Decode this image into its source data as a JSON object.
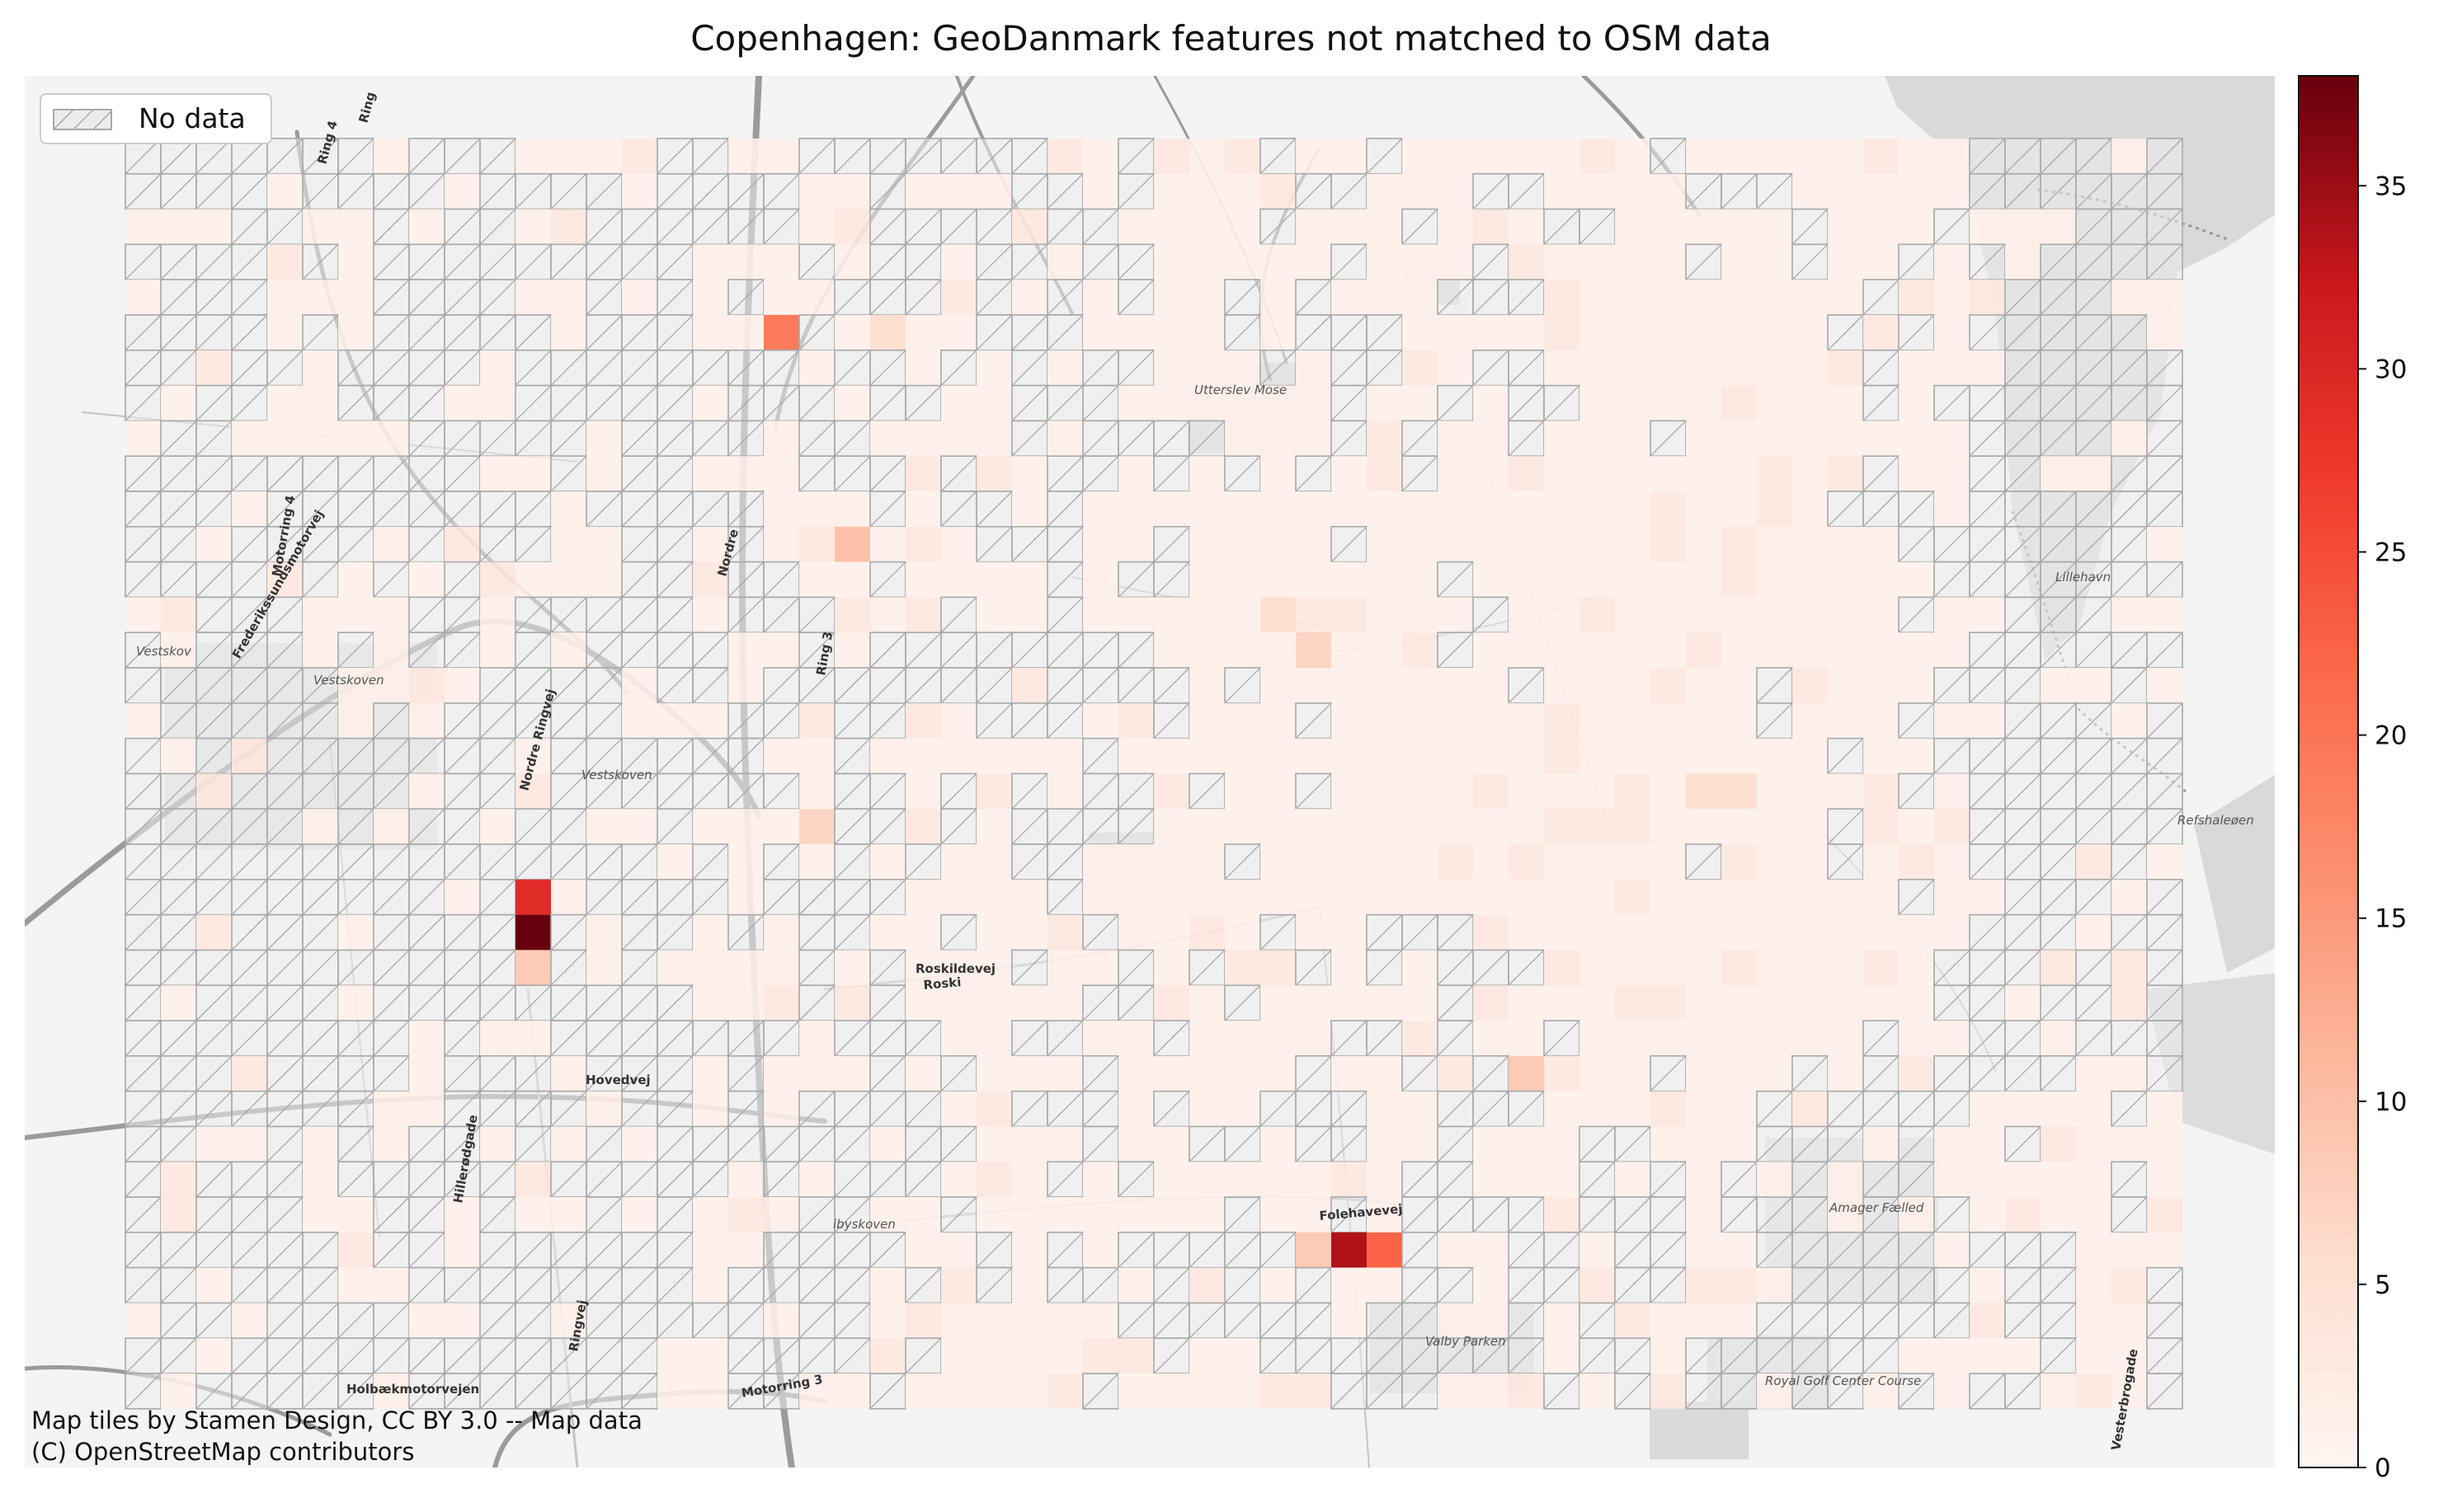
{
  "title": "Copenhagen: GeoDanmark features not matched to OSM data",
  "legend": {
    "no_data_label": "No data"
  },
  "attribution": {
    "line1": "Map tiles by Stamen Design, CC BY 3.0 -- Map data",
    "line2": "(C) OpenStreetMap contributors"
  },
  "colorbar": {
    "ticks": [
      0,
      5,
      10,
      15,
      20,
      25,
      30,
      35
    ],
    "vmin": 0,
    "vmax": 38,
    "colormap": "Reds",
    "colors": [
      "#fff5f0",
      "#fcbba1",
      "#fc9272",
      "#fb6a4a",
      "#ef3b2c",
      "#cb181d",
      "#a50f15",
      "#67000d"
    ]
  },
  "map": {
    "grid_cols": 58,
    "grid_rows": 36,
    "no_data_fill": "#ececec",
    "no_data_edge": "#a8a8a8",
    "base_cell_color": "#fff0ea",
    "hot_cells": [
      {
        "col": 18,
        "row": 5,
        "value": 14
      },
      {
        "col": 20,
        "row": 11,
        "value": 5
      },
      {
        "col": 11,
        "row": 21,
        "value": 24
      },
      {
        "col": 11,
        "row": 22,
        "value": 38
      },
      {
        "col": 11,
        "row": 23,
        "value": 4
      },
      {
        "col": 34,
        "row": 31,
        "value": 31
      },
      {
        "col": 35,
        "row": 31,
        "value": 17
      },
      {
        "col": 33,
        "row": 31,
        "value": 4
      },
      {
        "col": 33,
        "row": 14,
        "value": 3
      },
      {
        "col": 39,
        "row": 26,
        "value": 4
      },
      {
        "col": 19,
        "row": 19,
        "value": 3
      },
      {
        "col": 45,
        "row": 18,
        "value": 2
      },
      {
        "col": 44,
        "row": 18,
        "value": 2
      },
      {
        "col": 32,
        "row": 13,
        "value": 2
      },
      {
        "col": 21,
        "row": 5,
        "value": 2
      }
    ],
    "road_labels": [
      "Ring 4",
      "Ring",
      "Motorring 4",
      "Frederikssundsmotorvej",
      "Nordre Ringvej",
      "Nordre",
      "Ring 3",
      "Roskildevej",
      "Roski",
      "Hovedvej",
      "Folehavevej",
      "Holbækmotorvejen",
      "Motorring 3",
      "Ringvej",
      "Vesterbrogade",
      "Hillerødgade"
    ],
    "place_labels": [
      "Vestskov",
      "Vestskoven",
      "Vestskoven",
      "Utterslev Mose",
      "Amager Fælled",
      "Valby Parken",
      "Royal Golf Center Course",
      "Lillehavn",
      "ibyskoven",
      "Refshaleøen"
    ]
  }
}
